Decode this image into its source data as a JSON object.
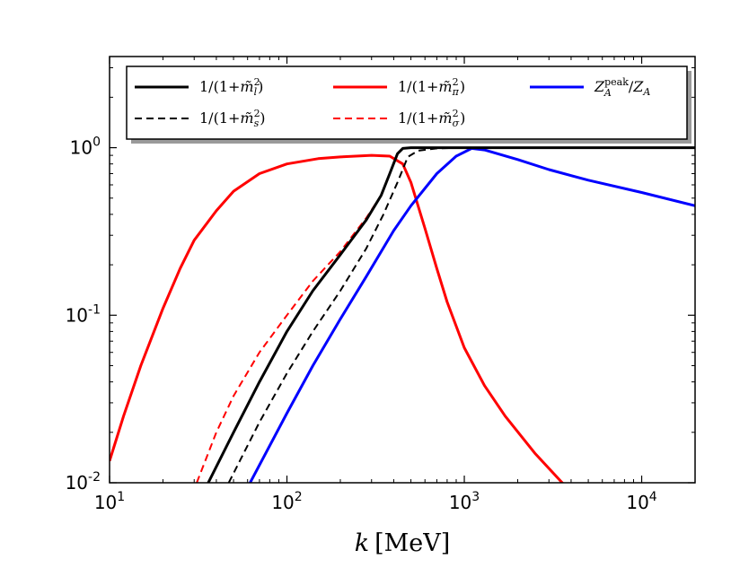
{
  "chart_data": {
    "type": "line",
    "x_scale": "log",
    "y_scale": "log",
    "xlim": [
      10,
      20000
    ],
    "ylim": [
      0.01,
      3.5
    ],
    "xlabel": "k [MeV]",
    "ylabel": "",
    "legend_position": "top",
    "x_ticks": [
      {
        "value": 10,
        "base": "10",
        "exp": "1"
      },
      {
        "value": 100,
        "base": "10",
        "exp": "2"
      },
      {
        "value": 1000,
        "base": "10",
        "exp": "3"
      },
      {
        "value": 10000,
        "base": "10",
        "exp": "4"
      }
    ],
    "y_ticks": [
      {
        "value": 0.01,
        "base": "10",
        "exp": "-2"
      },
      {
        "value": 0.1,
        "base": "10",
        "exp": "-1"
      },
      {
        "value": 1,
        "base": "10",
        "exp": "0"
      }
    ],
    "series": [
      {
        "name": "1/(1+m̃_l²)",
        "legend_pre": "1/(1+",
        "legend_sym": "m̃",
        "legend_sup": "2",
        "legend_sub": "l",
        "legend_post": ")",
        "color": "#000000",
        "dash": "solid",
        "width": 3,
        "points": [
          [
            36,
            0.01
          ],
          [
            50,
            0.02
          ],
          [
            70,
            0.04
          ],
          [
            100,
            0.08
          ],
          [
            140,
            0.14
          ],
          [
            200,
            0.23
          ],
          [
            280,
            0.37
          ],
          [
            340,
            0.52
          ],
          [
            380,
            0.7
          ],
          [
            420,
            0.92
          ],
          [
            450,
            0.99
          ],
          [
            500,
            1.0
          ],
          [
            1000,
            1.0
          ],
          [
            20000,
            1.0
          ]
        ]
      },
      {
        "name": "1/(1+m̃_s²)",
        "legend_pre": "1/(1+",
        "legend_sym": "m̃",
        "legend_sup": "2",
        "legend_sub": "s",
        "legend_post": ")",
        "color": "#000000",
        "dash": "dashed",
        "width": 2,
        "points": [
          [
            47,
            0.01
          ],
          [
            70,
            0.023
          ],
          [
            100,
            0.045
          ],
          [
            140,
            0.08
          ],
          [
            200,
            0.14
          ],
          [
            280,
            0.25
          ],
          [
            350,
            0.4
          ],
          [
            420,
            0.62
          ],
          [
            480,
            0.88
          ],
          [
            550,
            0.96
          ],
          [
            700,
            0.99
          ],
          [
            1000,
            1.0
          ],
          [
            20000,
            1.0
          ]
        ]
      },
      {
        "name": "1/(1+m̃_π²)",
        "legend_pre": "1/(1+",
        "legend_sym": "m̃",
        "legend_sup": "2",
        "legend_sub": "π",
        "legend_post": ")",
        "color": "#ff0000",
        "dash": "solid",
        "width": 3,
        "points": [
          [
            10,
            0.0135
          ],
          [
            12,
            0.025
          ],
          [
            15,
            0.05
          ],
          [
            20,
            0.11
          ],
          [
            25,
            0.19
          ],
          [
            30,
            0.28
          ],
          [
            40,
            0.42
          ],
          [
            50,
            0.55
          ],
          [
            70,
            0.7
          ],
          [
            100,
            0.8
          ],
          [
            150,
            0.86
          ],
          [
            200,
            0.88
          ],
          [
            300,
            0.9
          ],
          [
            380,
            0.89
          ],
          [
            450,
            0.8
          ],
          [
            500,
            0.62
          ],
          [
            600,
            0.33
          ],
          [
            700,
            0.19
          ],
          [
            800,
            0.12
          ],
          [
            1000,
            0.064
          ],
          [
            1300,
            0.038
          ],
          [
            1700,
            0.025
          ],
          [
            2500,
            0.015
          ],
          [
            3800,
            0.0093
          ]
        ]
      },
      {
        "name": "1/(1+m̃_σ²)",
        "legend_pre": "1/(1+",
        "legend_sym": "m̃",
        "legend_sup": "2",
        "legend_sub": "σ",
        "legend_post": ")",
        "color": "#ff0000",
        "dash": "dashed",
        "width": 2,
        "points": [
          [
            31,
            0.01
          ],
          [
            40,
            0.02
          ],
          [
            50,
            0.033
          ],
          [
            70,
            0.06
          ],
          [
            100,
            0.1
          ],
          [
            140,
            0.16
          ],
          [
            200,
            0.24
          ],
          [
            280,
            0.38
          ],
          [
            340,
            0.52
          ]
        ]
      },
      {
        "name": "Z_A^peak/Z_A",
        "legend_kind": "ratio",
        "color": "#0000ff",
        "dash": "solid",
        "width": 3,
        "points": [
          [
            62,
            0.01
          ],
          [
            100,
            0.026
          ],
          [
            140,
            0.05
          ],
          [
            200,
            0.095
          ],
          [
            280,
            0.17
          ],
          [
            400,
            0.32
          ],
          [
            500,
            0.45
          ],
          [
            700,
            0.7
          ],
          [
            900,
            0.89
          ],
          [
            1100,
            0.99
          ],
          [
            1300,
            0.97
          ],
          [
            2000,
            0.85
          ],
          [
            3000,
            0.74
          ],
          [
            5000,
            0.64
          ],
          [
            10000,
            0.54
          ],
          [
            20000,
            0.45
          ]
        ]
      }
    ]
  },
  "legend_columns": [
    [
      "1/(1+m̃_l²)",
      "1/(1+m̃_s²)"
    ],
    [
      "1/(1+m̃_π²)",
      "1/(1+m̃_σ²)"
    ],
    [
      "Z_A^peak/Z_A"
    ]
  ],
  "ratio_legend": {
    "sym": "Z",
    "sub": "A",
    "sup": "peak",
    "sep": "/"
  },
  "axis_title": {
    "sym": "k",
    "unit": "[MeV]"
  }
}
